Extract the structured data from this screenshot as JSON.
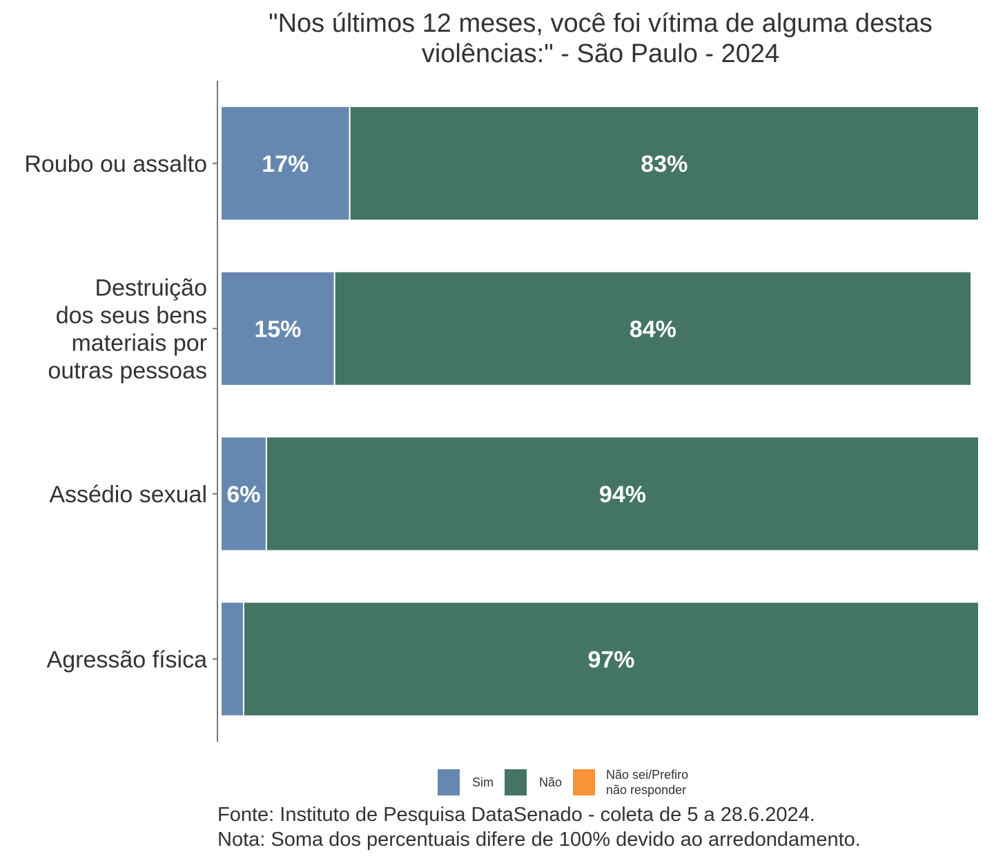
{
  "chart_data": {
    "type": "bar",
    "orientation": "horizontal",
    "stacked": true,
    "title_lines": [
      "\"Nos últimos 12 meses, você foi vítima de alguma destas",
      "violências:\" - São Paulo - 2024"
    ],
    "categories": [
      [
        "Roubo ou assalto"
      ],
      [
        "Destruição",
        "dos seus bens",
        "materiais por",
        "outras pessoas"
      ],
      [
        "Assédio sexual"
      ],
      [
        "Agressão física"
      ]
    ],
    "series": [
      {
        "name": "Sim",
        "color": "#6688b0",
        "values": [
          17,
          15,
          6,
          3
        ],
        "labels": [
          "17%",
          "15%",
          "6%",
          ""
        ]
      },
      {
        "name": "Não",
        "color": "#447563",
        "values": [
          83,
          84,
          94,
          97
        ],
        "labels": [
          "83%",
          "84%",
          "94%",
          "97%"
        ]
      },
      {
        "name": "Não sei/Prefiro\nnão responder",
        "color": "#fa9339",
        "values": [
          0,
          0,
          0,
          0
        ],
        "labels": [
          "",
          "",
          "",
          ""
        ]
      }
    ],
    "xlim": [
      0,
      100
    ],
    "grid": false,
    "legend_position": "bottom",
    "caption_lines": [
      "Fonte: Instituto de Pesquisa DataSenado - coleta de 5 a 28.6.2024.",
      "Nota: Soma dos percentuais difere de 100% devido ao arredondamento."
    ]
  }
}
